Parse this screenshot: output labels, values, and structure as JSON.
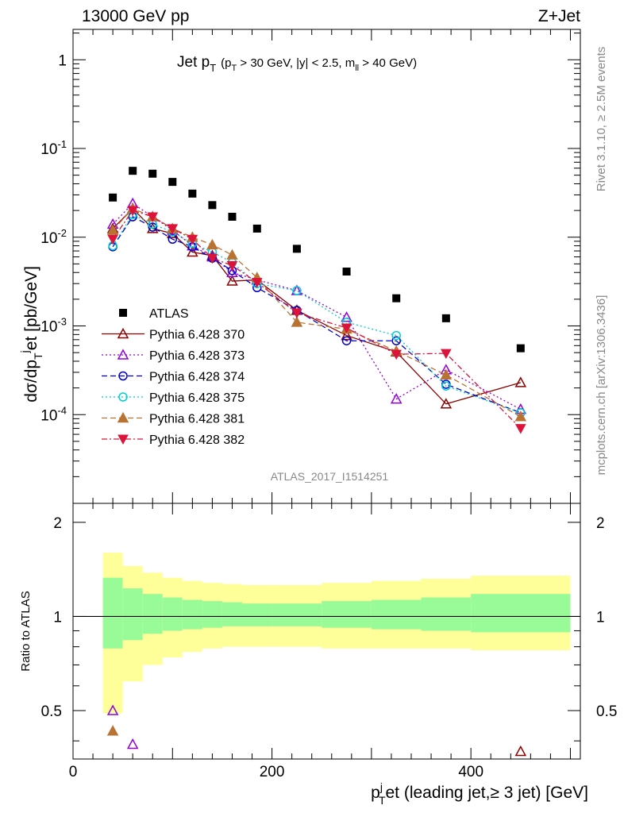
{
  "header": {
    "left": "13000 GeV pp",
    "right": "Z+Jet"
  },
  "side": {
    "rivet": "Rivet 3.1.10, ≥ 2.5M events",
    "mcplots": "mcplots.cern.ch [arXiv:1306.3436]"
  },
  "main": {
    "title_main": "Jet p",
    "title_main_sub": "T",
    "title_cuts": "(p",
    "title_cuts_sub": "T",
    "title_cuts_rest": " > 30 GeV, |y| < 2.5, m",
    "title_cuts_sub2": "ll",
    "title_cuts_end": " > 40 GeV)",
    "analysis_tag": "ATLAS_2017_I1514251",
    "ylabel_parts": [
      "dσ/dp",
      "T",
      "j",
      "et [pb/GeV]"
    ]
  },
  "ratio": {
    "ylabel": "Ratio to ATLAS"
  },
  "xaxis": {
    "label_p": "p",
    "label_sup": "j",
    "label_sub": "T",
    "label_rest": "et (leading jet,≥ 3 jet) [GeV]"
  },
  "chart_data": [
    {
      "type": "scatter",
      "panel": "main",
      "log_y": true,
      "xlim": [
        0,
        510
      ],
      "ylim": [
        1e-05,
        2.2
      ],
      "x_ticks": [
        0,
        200,
        400
      ],
      "y_tick_labels": [
        "1",
        "10^-1",
        "10^-2",
        "10^-3",
        "10^-4"
      ],
      "legend_position": "left-middle",
      "x": [
        40,
        60,
        80,
        100,
        120,
        140,
        160,
        185,
        225,
        275,
        325,
        375,
        450
      ],
      "series": [
        {
          "name": "ATLAS",
          "color": "#000000",
          "marker": "square-filled",
          "values": [
            0.028,
            0.056,
            0.052,
            0.042,
            0.031,
            0.023,
            0.017,
            0.0125,
            0.0074,
            0.0041,
            0.00205,
            0.00122,
            0.00056
          ]
        },
        {
          "name": "Pythia 6.428 370",
          "color": "#8b0000",
          "marker": "triangle-up-open",
          "line": "solid",
          "values": [
            0.0125,
            0.021,
            0.0125,
            0.011,
            0.0068,
            0.0062,
            0.0032,
            0.0033,
            0.0015,
            0.00078,
            0.00051,
            0.000132,
            0.00023
          ]
        },
        {
          "name": "Pythia 6.428 373",
          "color": "#9400d3",
          "marker": "triangle-up-open",
          "line": "dotted",
          "values": [
            0.014,
            0.024,
            0.017,
            0.012,
            0.008,
            0.006,
            0.004,
            0.0033,
            0.0025,
            0.00125,
            0.00015,
            0.00032,
            0.000115
          ]
        },
        {
          "name": "Pythia 6.428 374",
          "color": "#0000cd",
          "marker": "circle-open",
          "line": "dashed",
          "values": [
            0.0078,
            0.017,
            0.013,
            0.0095,
            0.0078,
            0.0058,
            0.0042,
            0.0027,
            0.0015,
            0.00068,
            0.00068,
            0.00022,
            0.000105
          ]
        },
        {
          "name": "Pythia 6.428 375",
          "color": "#00ced1",
          "marker": "circle-open",
          "line": "dotted",
          "values": [
            0.008,
            0.018,
            0.014,
            0.0115,
            0.0085,
            0.0068,
            0.0052,
            0.003,
            0.0025,
            0.0011,
            0.00078,
            0.00021,
            0.000105
          ]
        },
        {
          "name": "Pythia 6.428 381",
          "color": "#b87333",
          "marker": "triangle-up-filled",
          "line": "dashed",
          "values": [
            0.012,
            0.021,
            0.017,
            0.0125,
            0.01,
            0.0082,
            0.0063,
            0.0035,
            0.0011,
            0.00092,
            0.00052,
            0.00028,
            9.5e-05
          ]
        },
        {
          "name": "Pythia 6.428 382",
          "color": "#dc143c",
          "marker": "triangle-down-filled",
          "line": "dashdot",
          "values": [
            0.0095,
            0.02,
            0.017,
            0.0125,
            0.0095,
            0.0058,
            0.0048,
            0.0031,
            0.0014,
            0.00095,
            0.00048,
            0.00049,
            7e-05
          ]
        }
      ]
    },
    {
      "type": "area",
      "panel": "ratio",
      "xlim": [
        0,
        510
      ],
      "ylim": [
        0.35,
        2.3
      ],
      "y_tick_labels": [
        "0.5",
        "1",
        "2"
      ],
      "bin_edges": [
        30,
        50,
        70,
        90,
        110,
        130,
        150,
        170,
        200,
        250,
        300,
        350,
        400,
        500
      ],
      "inner_band": {
        "color": "#98fb98",
        "upper": [
          1.33,
          1.23,
          1.18,
          1.15,
          1.13,
          1.12,
          1.11,
          1.1,
          1.1,
          1.12,
          1.13,
          1.15,
          1.18
        ],
        "lower": [
          0.79,
          0.84,
          0.88,
          0.9,
          0.91,
          0.92,
          0.93,
          0.93,
          0.93,
          0.92,
          0.91,
          0.9,
          0.89
        ]
      },
      "outer_band": {
        "color": "#ffff99",
        "upper": [
          1.6,
          1.45,
          1.38,
          1.33,
          1.3,
          1.28,
          1.27,
          1.26,
          1.26,
          1.28,
          1.3,
          1.32,
          1.35
        ],
        "lower": [
          0.49,
          0.62,
          0.7,
          0.74,
          0.77,
          0.79,
          0.8,
          0.8,
          0.8,
          0.79,
          0.79,
          0.79,
          0.78
        ]
      },
      "visible_points": [
        {
          "series": "Pythia 6.428 373",
          "x": 40,
          "y": 0.5
        },
        {
          "series": "Pythia 6.428 373",
          "x": 60,
          "y": 0.39
        },
        {
          "series": "Pythia 6.428 381",
          "x": 40,
          "y": 0.43
        },
        {
          "series": "Pythia 6.428 370",
          "x": 450,
          "y": 0.37
        }
      ]
    }
  ]
}
